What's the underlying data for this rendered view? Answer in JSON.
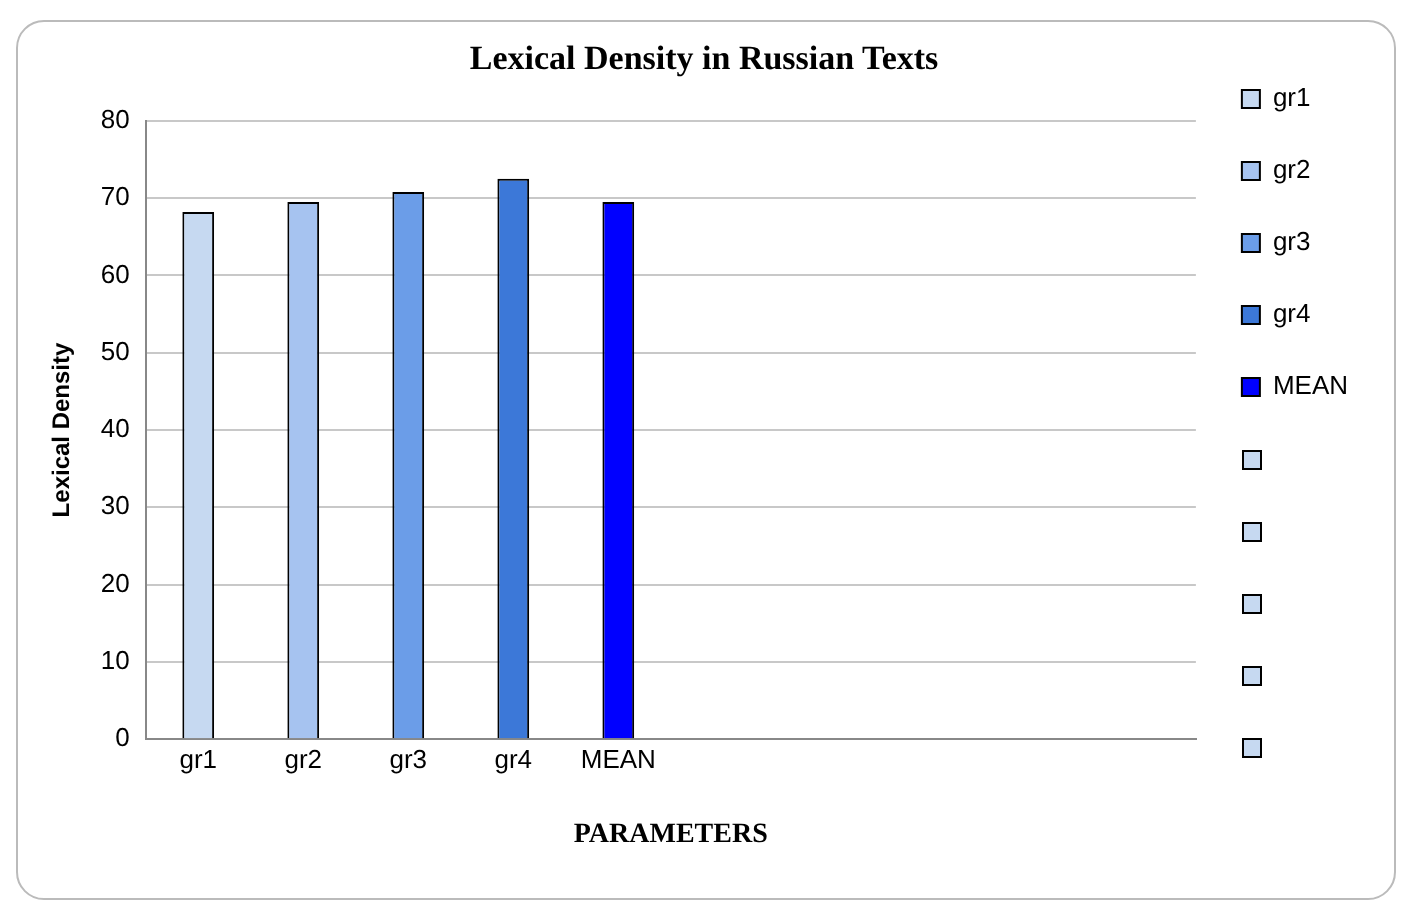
{
  "chart_data": {
    "type": "bar",
    "title": "Lexical Density in Russian Texts",
    "xlabel": "PARAMETERS",
    "ylabel": "Lexical Density",
    "categories": [
      "gr1",
      "gr2",
      "gr3",
      "gr4",
      "MEAN",
      null,
      null,
      null,
      null,
      null
    ],
    "series": [
      {
        "name": "gr1",
        "color": "#c6d9f1",
        "values": [
          68.2,
          null,
          null,
          null,
          null,
          null,
          null,
          null,
          null,
          null
        ]
      },
      {
        "name": "gr2",
        "color": "#a6c3f0",
        "values": [
          null,
          69.5,
          null,
          null,
          null,
          null,
          null,
          null,
          null,
          null
        ]
      },
      {
        "name": "gr3",
        "color": "#6b9de8",
        "values": [
          null,
          null,
          70.8,
          null,
          null,
          null,
          null,
          null,
          null,
          null
        ]
      },
      {
        "name": "gr4",
        "color": "#3c78d8",
        "values": [
          null,
          null,
          null,
          72.5,
          null,
          null,
          null,
          null,
          null,
          null
        ]
      },
      {
        "name": "MEAN",
        "color": "#0000ff",
        "values": [
          null,
          null,
          null,
          null,
          69.5,
          null,
          null,
          null,
          null,
          null
        ]
      }
    ],
    "ylim": [
      0,
      80
    ],
    "yticks": [
      0,
      10,
      20,
      30,
      40,
      50,
      60,
      70,
      80
    ],
    "grid": "y",
    "legend": "right"
  }
}
